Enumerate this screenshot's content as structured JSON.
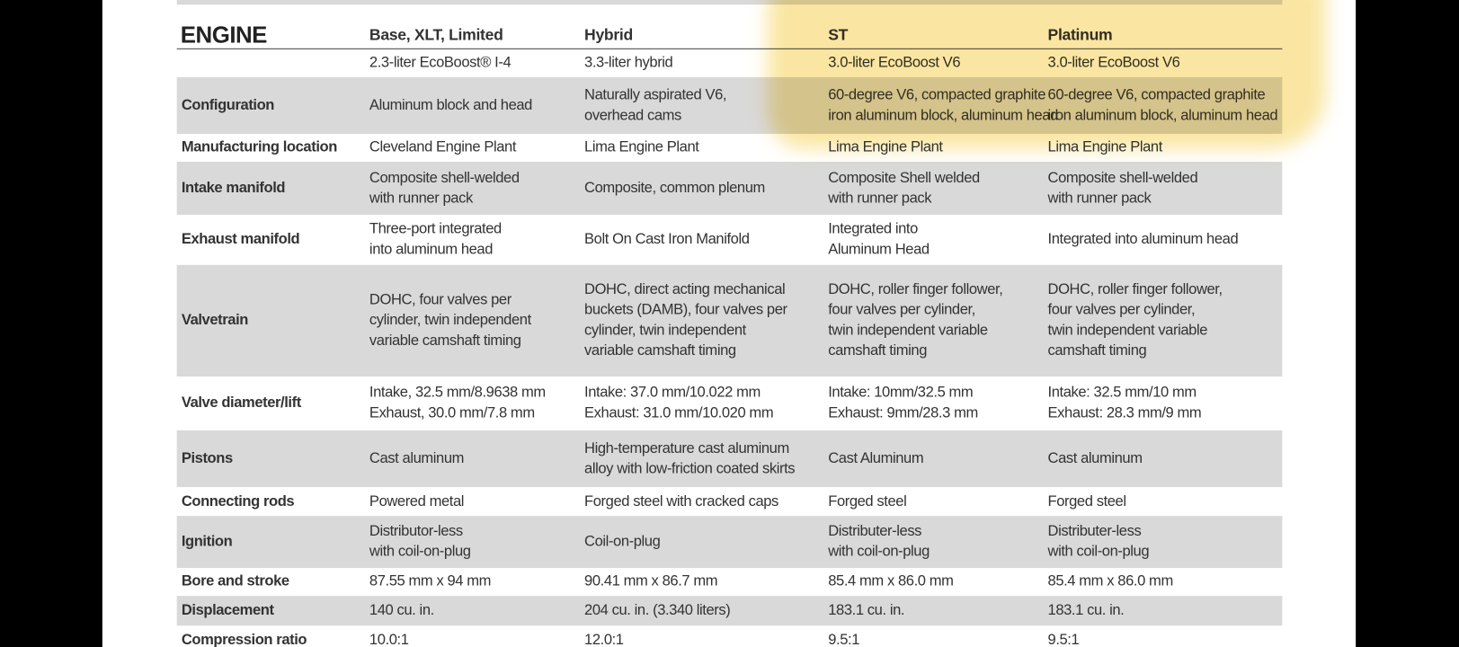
{
  "header": {
    "title": "ENGINE",
    "columns": [
      "Base, XLT, Limited",
      "Hybrid",
      "ST",
      "Platinum"
    ]
  },
  "engines": [
    "2.3-liter EcoBoost® I-4",
    "3.3-liter hybrid",
    "3.0-liter EcoBoost V6",
    "3.0-liter EcoBoost V6"
  ],
  "rows": [
    {
      "label": "Configuration",
      "cells": [
        [
          "Aluminum block and head"
        ],
        [
          "Naturally aspirated V6,",
          "overhead cams"
        ],
        [
          "60-degree V6, compacted graphite",
          "iron aluminum block, aluminum head"
        ],
        [
          "60-degree V6, compacted graphite",
          "iron aluminum block, aluminum head"
        ]
      ]
    },
    {
      "label": "Manufacturing location",
      "cells": [
        [
          "Cleveland Engine Plant"
        ],
        [
          "Lima Engine Plant"
        ],
        [
          "Lima Engine Plant"
        ],
        [
          "Lima Engine Plant"
        ]
      ]
    },
    {
      "label": "Intake manifold",
      "cells": [
        [
          "Composite shell-welded",
          "with runner pack"
        ],
        [
          "Composite, common plenum"
        ],
        [
          "Composite Shell welded",
          "with runner pack"
        ],
        [
          "Composite shell-welded",
          "with runner pack"
        ]
      ]
    },
    {
      "label": "Exhaust manifold",
      "cells": [
        [
          "Three-port integrated",
          "into aluminum head"
        ],
        [
          "Bolt On Cast Iron Manifold"
        ],
        [
          "Integrated into",
          "Aluminum Head"
        ],
        [
          "Integrated into aluminum head"
        ]
      ]
    },
    {
      "label": "Valvetrain",
      "cells": [
        [
          "DOHC, four valves per",
          "cylinder, twin independent",
          "variable camshaft timing"
        ],
        [
          "DOHC, direct acting mechanical",
          "buckets (DAMB), four valves per",
          "cylinder, twin independent",
          "variable camshaft timing"
        ],
        [
          "DOHC, roller finger follower,",
          "four valves per cylinder,",
          "twin independent variable",
          "camshaft timing"
        ],
        [
          "DOHC, roller finger follower,",
          "four valves per cylinder,",
          "twin independent variable",
          "camshaft timing"
        ]
      ]
    },
    {
      "label": "Valve diameter/lift",
      "cells": [
        [
          "Intake, 32.5 mm/8.9638 mm",
          "Exhaust, 30.0 mm/7.8 mm"
        ],
        [
          "Intake: 37.0 mm/10.022 mm",
          "Exhaust: 31.0 mm/10.020 mm"
        ],
        [
          "Intake: 10mm/32.5 mm",
          "Exhaust: 9mm/28.3 mm"
        ],
        [
          "Intake: 32.5 mm/10 mm",
          "Exhaust: 28.3 mm/9 mm"
        ]
      ]
    },
    {
      "label": "Pistons",
      "cells": [
        [
          "Cast aluminum"
        ],
        [
          "High-temperature cast aluminum",
          "alloy with low-friction coated skirts"
        ],
        [
          "Cast Aluminum"
        ],
        [
          "Cast aluminum"
        ]
      ]
    },
    {
      "label": "Connecting rods",
      "cells": [
        [
          "Powered metal"
        ],
        [
          "Forged steel with cracked caps"
        ],
        [
          "Forged steel"
        ],
        [
          "Forged steel"
        ]
      ]
    },
    {
      "label": "Ignition",
      "cells": [
        [
          "Distributor-less",
          "with coil-on-plug"
        ],
        [
          "Coil-on-plug"
        ],
        [
          "Distributer-less",
          "with coil-on-plug"
        ],
        [
          "Distributer-less",
          "with coil-on-plug"
        ]
      ]
    },
    {
      "label": "Bore and stroke",
      "cells": [
        [
          "87.55 mm x 94 mm"
        ],
        [
          "90.41 mm x 86.7 mm"
        ],
        [
          "85.4 mm x 86.0 mm"
        ],
        [
          "85.4 mm x 86.0 mm"
        ]
      ]
    },
    {
      "label": "Displacement",
      "cells": [
        [
          "140 cu. in."
        ],
        [
          "204 cu. in. (3.340 liters)"
        ],
        [
          "183.1 cu. in."
        ],
        [
          "183.1 cu. in."
        ]
      ]
    },
    {
      "label": "Compression ratio",
      "cells": [
        [
          "10.0:1"
        ],
        [
          "12.0:1"
        ],
        [
          "9.5:1"
        ],
        [
          "9.5:1"
        ]
      ]
    }
  ]
}
